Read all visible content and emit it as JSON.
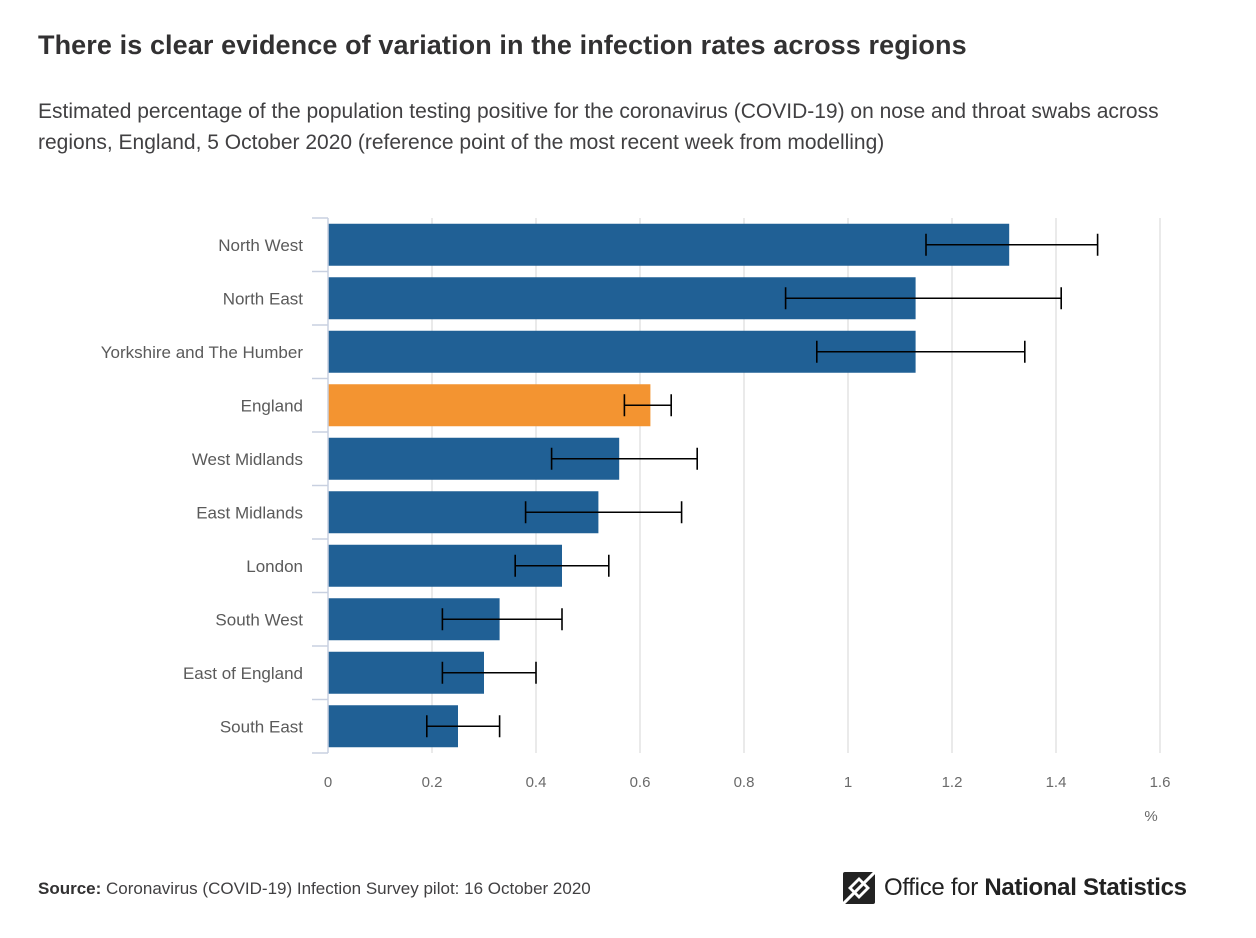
{
  "header": {
    "title": "There is clear evidence of variation in the infection rates across regions",
    "subtitle": "Estimated percentage of the population testing positive for the coronavirus (COVID-19) on nose and throat swabs across regions, England, 5 October 2020 (reference point of the most recent week from modelling)"
  },
  "chart_data": {
    "type": "bar",
    "orientation": "horizontal",
    "categories": [
      "North West",
      "North East",
      "Yorkshire and The Humber",
      "England",
      "West Midlands",
      "East Midlands",
      "London",
      "South West",
      "East of England",
      "South East"
    ],
    "values": [
      1.31,
      1.13,
      1.13,
      0.62,
      0.56,
      0.52,
      0.45,
      0.33,
      0.3,
      0.25
    ],
    "error_low": [
      1.15,
      0.88,
      0.94,
      0.57,
      0.43,
      0.38,
      0.36,
      0.22,
      0.22,
      0.19
    ],
    "error_high": [
      1.48,
      1.41,
      1.34,
      0.66,
      0.71,
      0.68,
      0.54,
      0.45,
      0.4,
      0.33
    ],
    "highlight": "England",
    "colors": {
      "bar": "#206095",
      "highlight": "#f39431",
      "grid": "#e4e4e4",
      "axis": "#c8d0e0",
      "error": "#000000"
    },
    "xlim": [
      0,
      1.6
    ],
    "xticks": [
      "0",
      "0.2",
      "0.4",
      "0.6",
      "0.8",
      "1",
      "1.2",
      "1.4",
      "1.6"
    ],
    "xtick_values": [
      0,
      0.2,
      0.4,
      0.6,
      0.8,
      1,
      1.2,
      1.4,
      1.6
    ],
    "xlabel": "%",
    "ylabel": "",
    "grid": true,
    "legend": "none"
  },
  "footer": {
    "source_label": "Source:",
    "source_text": "Coronavirus (COVID-19) Infection Survey pilot: 16 October 2020",
    "logo_text_regular": "Office for",
    "logo_text_bold": "National Statistics"
  }
}
